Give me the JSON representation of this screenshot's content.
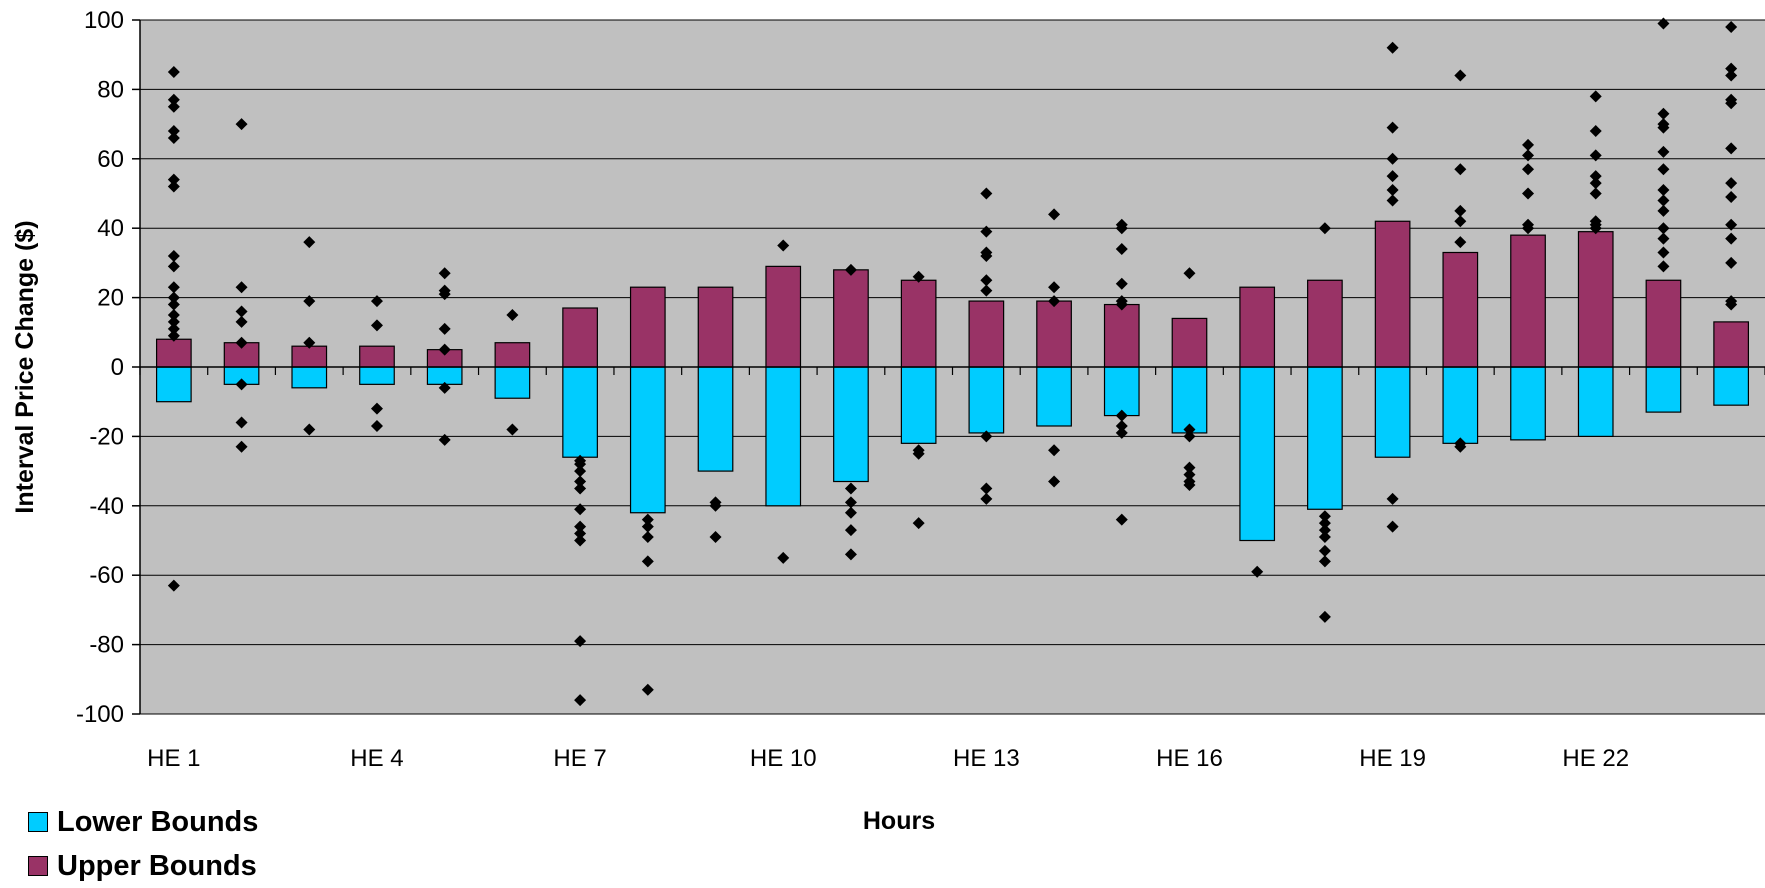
{
  "chart_data": {
    "type": "bar",
    "xlabel": "Hours",
    "ylabel": "Interval Price Change ($)",
    "ylim": [
      -100,
      100
    ],
    "yticks": [
      100,
      80,
      60,
      40,
      20,
      0,
      -20,
      -40,
      -60,
      -80,
      -100
    ],
    "grid": true,
    "legend_position": "bottom-left",
    "categories": [
      "HE 1",
      "HE 2",
      "HE 3",
      "HE 4",
      "HE 5",
      "HE 6",
      "HE 7",
      "HE 8",
      "HE 9",
      "HE 10",
      "HE 11",
      "HE 12",
      "HE 13",
      "HE 14",
      "HE 15",
      "HE 16",
      "HE 17",
      "HE 18",
      "HE 19",
      "HE 20",
      "HE 21",
      "HE 22",
      "HE 23",
      "HE 24"
    ],
    "shown_tick_labels": [
      "HE 1",
      "HE 4",
      "HE 7",
      "HE 10",
      "HE 13",
      "HE 16",
      "HE 19",
      "HE 22"
    ],
    "series": [
      {
        "name": "Lower Bounds",
        "color": "#00ccff",
        "values": [
          -10,
          -5,
          -6,
          -5,
          -5,
          -9,
          -26,
          -42,
          -30,
          -40,
          -33,
          -22,
          -19,
          -17,
          -14,
          -19,
          -50,
          -41,
          -26,
          -22,
          -21,
          -20,
          -13,
          -11
        ]
      },
      {
        "name": "Upper Bounds",
        "color": "#993366",
        "values": [
          8,
          7,
          6,
          6,
          5,
          7,
          17,
          23,
          23,
          29,
          28,
          25,
          19,
          19,
          18,
          14,
          23,
          25,
          42,
          33,
          38,
          39,
          25,
          13
        ]
      }
    ],
    "scatter_points": [
      [
        85,
        77,
        75,
        68,
        66,
        54,
        52,
        32,
        29,
        23,
        20,
        18,
        15,
        13,
        11,
        9,
        -63
      ],
      [
        70,
        23,
        16,
        13,
        7,
        -5,
        -16,
        -23
      ],
      [
        36,
        19,
        7,
        -18
      ],
      [
        19,
        12,
        -12,
        -17
      ],
      [
        27,
        22,
        21,
        11,
        5,
        -6,
        -21
      ],
      [
        15,
        -18
      ],
      [
        -27,
        -28,
        -30,
        -33,
        -35,
        -41,
        -46,
        -48,
        -50,
        -79,
        -96
      ],
      [
        -44,
        -46,
        -49,
        -56,
        -93
      ],
      [
        -39,
        -40,
        -49
      ],
      [
        35,
        -55
      ],
      [
        28,
        -35,
        -39,
        -42,
        -47,
        -54
      ],
      [
        26,
        -24,
        -25,
        -45
      ],
      [
        50,
        39,
        33,
        32,
        25,
        22,
        -20,
        -35,
        -38
      ],
      [
        44,
        23,
        19,
        -24,
        -33
      ],
      [
        41,
        40,
        34,
        24,
        19,
        18,
        -14,
        -17,
        -19,
        -44
      ],
      [
        27,
        -18,
        -20,
        -29,
        -31,
        -33,
        -34
      ],
      [
        -59
      ],
      [
        40,
        -43,
        -45,
        -47,
        -49,
        -53,
        -56,
        -72
      ],
      [
        92,
        69,
        60,
        55,
        51,
        48,
        -38,
        -46
      ],
      [
        84,
        57,
        45,
        42,
        36,
        -22,
        -23
      ],
      [
        64,
        61,
        57,
        50,
        41,
        40
      ],
      [
        78,
        68,
        61,
        55,
        53,
        50,
        42,
        41,
        40
      ],
      [
        99,
        73,
        70,
        69,
        62,
        57,
        51,
        48,
        45,
        40,
        37,
        33,
        29
      ],
      [
        98,
        86,
        84,
        77,
        76,
        63,
        53,
        49,
        41,
        37,
        30,
        19,
        18
      ]
    ],
    "scatter_color": "#000000",
    "plot_background": "#c0c0c0"
  }
}
